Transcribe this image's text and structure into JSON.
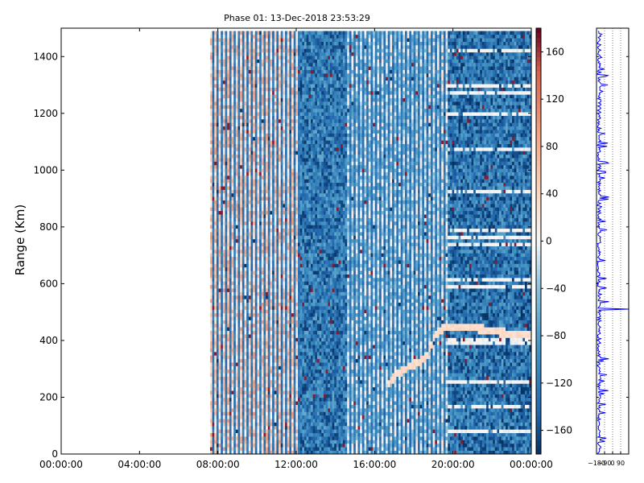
{
  "chart_data": [
    {
      "type": "heatmap",
      "title": "Phase 01: 13-Dec-2018 23:53:29",
      "xlabel": "",
      "ylabel": "Range (Km)",
      "x_tick_labels": [
        "00:00:00",
        "04:00:00",
        "08:00:00",
        "12:00:00",
        "16:00:00",
        "20:00:00",
        "00:00:00"
      ],
      "x_ticks_hours": [
        0,
        4,
        8,
        12,
        16,
        20,
        24
      ],
      "xlim_hours": [
        0,
        24
      ],
      "y_ticks": [
        0,
        200,
        400,
        600,
        800,
        1000,
        1200,
        1400
      ],
      "ylim": [
        0,
        1500
      ],
      "data_range_y": [
        0,
        1490
      ],
      "data_start_hour": 7.6,
      "data_end_hour": 24,
      "colormap": "RdBu_r",
      "colorbar": {
        "ticks": [
          160,
          120,
          80,
          40,
          0,
          -40,
          -80,
          -120,
          -160
        ],
        "range": [
          -180,
          180
        ]
      },
      "regimes": [
        {
          "from_hour": 7.6,
          "to_hour": 12.2,
          "description": "noisy positive, striped",
          "mean_phase": 45
        },
        {
          "from_hour": 12.2,
          "to_hour": 14.6,
          "description": "uniform negative",
          "mean_phase": -120
        },
        {
          "from_hour": 14.6,
          "to_hour": 18.4,
          "description": "mixed striped",
          "mean_phase": -30
        },
        {
          "from_hour": 18.4,
          "to_hour": 19.7,
          "description": "near zero",
          "mean_phase": -20
        },
        {
          "from_hour": 19.7,
          "to_hour": 24,
          "description": "negative with white bands",
          "mean_phase": -125
        }
      ],
      "feature_curve": {
        "x_hours": [
          16.7,
          17.2,
          17.8,
          18.3,
          18.7,
          19.1,
          19.6,
          20.1,
          20.6,
          21.0,
          21.5,
          22.0,
          22.4,
          22.9,
          23.5,
          24.0
        ],
        "range_km": [
          250,
          285,
          310,
          325,
          350,
          420,
          448,
          450,
          448,
          445,
          440,
          435,
          430,
          425,
          420,
          418
        ]
      }
    },
    {
      "type": "line",
      "title": "",
      "xlabel": "",
      "ylabel": "",
      "x_tick_labels": [
        "−180",
        "−90",
        "0",
        "90"
      ],
      "x_ticks": [
        -180,
        -90,
        0,
        90
      ],
      "xlim": [
        -180,
        180
      ],
      "ylim": [
        0,
        1500
      ],
      "grid": "vertical dotted",
      "series": [
        {
          "color": "#0000ff",
          "baseline": -150,
          "spike_range": 510
        }
      ]
    }
  ]
}
